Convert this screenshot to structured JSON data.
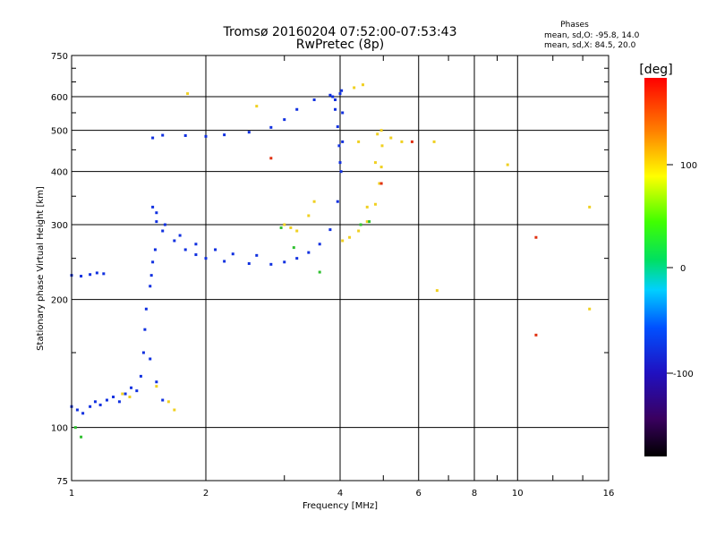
{
  "header": {
    "title_line1": "Tromsø 20160204 07:52:00-07:53:43",
    "title_line2": "RwPretec (8p)",
    "stats_title": "Phases",
    "stats_o": "mean, sd,O: -95.8, 14.0",
    "stats_x": "mean, sd,X: 84.5, 20.0"
  },
  "colorbar": {
    "label": "[deg]",
    "tick_labels": [
      "100",
      "0",
      "-100"
    ],
    "range": [
      -180,
      180
    ],
    "colormap": "rainbow (black-purple-blue-cyan-green-yellow-orange-red)"
  },
  "chart_data": {
    "type": "scatter",
    "title": "Tromsø 20160204 07:52:00-07:53:43",
    "subtitle": "RwPretec (8p)",
    "xlabel": "Frequency [MHz]",
    "ylabel": "Stationary phase Virtual Height [km]",
    "xscale": "log",
    "yscale": "log",
    "xlim": [
      1,
      16
    ],
    "ylim": [
      75,
      750
    ],
    "grid": true,
    "x_ticks": [
      1,
      2,
      4,
      6,
      8,
      10,
      16
    ],
    "x_tick_labels": [
      "1",
      "2",
      "4",
      "6",
      "8",
      "10",
      "16"
    ],
    "y_ticks": [
      75,
      100,
      200,
      300,
      400,
      500,
      600,
      750
    ],
    "y_tick_labels": [
      "75",
      "100",
      "200",
      "300",
      "400",
      "500",
      "600",
      "750"
    ],
    "color_meaning": "phase [deg]",
    "series": [
      {
        "name": "",
        "color_hint": "#1030e0",
        "points": [
          [
            1.0,
            112
          ],
          [
            1.03,
            110
          ],
          [
            1.06,
            108
          ],
          [
            1.1,
            112
          ],
          [
            1.13,
            115
          ],
          [
            1.16,
            113
          ],
          [
            1.2,
            116
          ],
          [
            1.24,
            118
          ],
          [
            1.28,
            115
          ],
          [
            1.32,
            120
          ],
          [
            1.36,
            124
          ],
          [
            1.4,
            122
          ],
          [
            1.43,
            132
          ],
          [
            1.45,
            150
          ],
          [
            1.46,
            170
          ],
          [
            1.47,
            190
          ],
          [
            1.5,
            145
          ],
          [
            1.55,
            128
          ],
          [
            1.6,
            116
          ],
          [
            1.0,
            228
          ],
          [
            1.05,
            227
          ],
          [
            1.1,
            229
          ],
          [
            1.14,
            231
          ],
          [
            1.18,
            230
          ],
          [
            1.5,
            215
          ],
          [
            1.51,
            228
          ],
          [
            1.52,
            245
          ],
          [
            1.54,
            262
          ],
          [
            1.52,
            330
          ],
          [
            1.55,
            305
          ],
          [
            1.6,
            290
          ],
          [
            1.7,
            275
          ],
          [
            1.8,
            262
          ],
          [
            1.9,
            255
          ],
          [
            2.0,
            250
          ],
          [
            2.2,
            246
          ],
          [
            2.5,
            243
          ],
          [
            2.8,
            242
          ],
          [
            3.0,
            245
          ],
          [
            3.2,
            250
          ],
          [
            3.4,
            258
          ],
          [
            3.6,
            270
          ],
          [
            3.8,
            292
          ],
          [
            3.95,
            340
          ],
          [
            4.02,
            400
          ],
          [
            4.05,
            470
          ],
          [
            4.05,
            550
          ],
          [
            1.55,
            320
          ],
          [
            1.62,
            300
          ],
          [
            1.75,
            283
          ],
          [
            1.9,
            270
          ],
          [
            2.1,
            262
          ],
          [
            2.3,
            256
          ],
          [
            2.6,
            254
          ],
          [
            1.52,
            480
          ],
          [
            1.6,
            487
          ],
          [
            1.8,
            486
          ],
          [
            2.0,
            484
          ],
          [
            2.2,
            488
          ],
          [
            2.5,
            495
          ],
          [
            2.8,
            508
          ],
          [
            3.0,
            530
          ],
          [
            3.2,
            560
          ],
          [
            3.5,
            590
          ],
          [
            3.8,
            605
          ],
          [
            4.0,
            610
          ],
          [
            4.03,
            620
          ],
          [
            3.9,
            560
          ],
          [
            3.95,
            510
          ],
          [
            3.98,
            460
          ],
          [
            4.0,
            420
          ],
          [
            3.9,
            590
          ],
          [
            3.85,
            600
          ]
        ]
      },
      {
        "name": "",
        "color_hint": "#f0d020",
        "points": [
          [
            4.05,
            275
          ],
          [
            4.2,
            280
          ],
          [
            4.4,
            290
          ],
          [
            4.6,
            305
          ],
          [
            4.8,
            335
          ],
          [
            4.9,
            375
          ],
          [
            4.95,
            410
          ],
          [
            4.97,
            460
          ],
          [
            4.95,
            500
          ],
          [
            4.6,
            330
          ],
          [
            4.8,
            420
          ],
          [
            4.85,
            490
          ],
          [
            5.2,
            480
          ],
          [
            5.5,
            470
          ],
          [
            4.4,
            470
          ],
          [
            3.0,
            300
          ],
          [
            3.1,
            295
          ],
          [
            3.2,
            290
          ],
          [
            3.4,
            315
          ],
          [
            3.5,
            340
          ],
          [
            1.82,
            610
          ],
          [
            2.6,
            570
          ],
          [
            4.3,
            630
          ],
          [
            4.5,
            640
          ],
          [
            1.3,
            120
          ],
          [
            1.35,
            118
          ],
          [
            1.55,
            125
          ],
          [
            1.65,
            115
          ],
          [
            1.7,
            110
          ],
          [
            6.5,
            470
          ],
          [
            9.5,
            415
          ],
          [
            14.5,
            330
          ],
          [
            14.5,
            190
          ],
          [
            6.6,
            210
          ]
        ]
      },
      {
        "name": "",
        "color_hint": "#30c030",
        "points": [
          [
            3.6,
            232
          ],
          [
            3.15,
            265
          ],
          [
            4.45,
            300
          ],
          [
            4.65,
            305
          ],
          [
            2.95,
            295
          ],
          [
            1.02,
            100
          ],
          [
            1.05,
            95
          ]
        ]
      },
      {
        "name": "",
        "color_hint": "#e03010",
        "points": [
          [
            2.8,
            430
          ],
          [
            4.95,
            375
          ],
          [
            11.0,
            280
          ],
          [
            11.0,
            165
          ],
          [
            5.8,
            470
          ]
        ]
      }
    ]
  }
}
